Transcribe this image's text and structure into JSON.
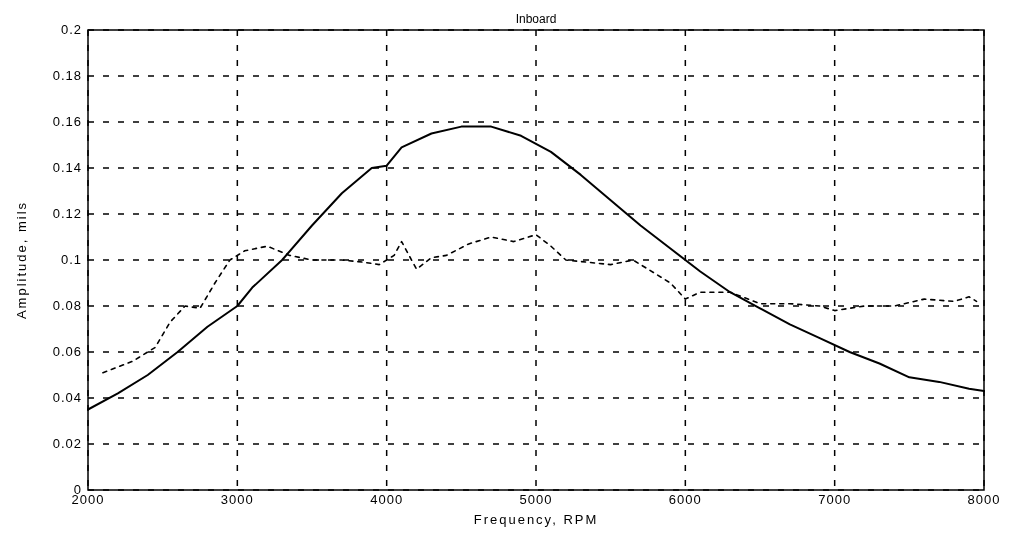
{
  "chart_data": {
    "type": "line",
    "title": "Inboard",
    "xlabel": "Frequency, RPM",
    "ylabel": "Amplitude, mils",
    "xlim": [
      2000,
      8000
    ],
    "xticks": [
      2000,
      3000,
      4000,
      5000,
      6000,
      7000,
      8000
    ],
    "ylim": [
      0,
      0.2
    ],
    "yticks": [
      0,
      0.02,
      0.04,
      0.06,
      0.08,
      0.1,
      0.12,
      0.14,
      0.16,
      0.18,
      0.2
    ],
    "grid": true,
    "series": [
      {
        "color": "#000000",
        "line_style": "solid",
        "x": [
          2000,
          2200,
          2400,
          2600,
          2800,
          3000,
          3100,
          3300,
          3500,
          3700,
          3900,
          4000,
          4100,
          4300,
          4500,
          4700,
          4900,
          5100,
          5300,
          5500,
          5700,
          5900,
          6100,
          6300,
          6500,
          6700,
          6900,
          7100,
          7300,
          7500,
          7700,
          7900,
          8000
        ],
        "values": [
          0.035,
          0.042,
          0.05,
          0.06,
          0.071,
          0.08,
          0.088,
          0.1,
          0.115,
          0.129,
          0.14,
          0.141,
          0.149,
          0.155,
          0.158,
          0.158,
          0.154,
          0.147,
          0.137,
          0.126,
          0.115,
          0.105,
          0.095,
          0.086,
          0.079,
          0.072,
          0.066,
          0.06,
          0.055,
          0.049,
          0.047,
          0.044,
          0.043
        ]
      },
      {
        "color": "#000000",
        "line_style": "dashed",
        "x": [
          2100,
          2300,
          2450,
          2550,
          2650,
          2750,
          2850,
          2950,
          3050,
          3200,
          3350,
          3500,
          3700,
          3850,
          3950,
          4050,
          4100,
          4200,
          4300,
          4400,
          4550,
          4700,
          4850,
          5000,
          5100,
          5200,
          5350,
          5500,
          5650,
          5750,
          5900,
          6000,
          6100,
          6300,
          6500,
          6700,
          6900,
          7000,
          7200,
          7400,
          7600,
          7800,
          7900,
          7950
        ],
        "values": [
          0.051,
          0.056,
          0.062,
          0.073,
          0.08,
          0.079,
          0.09,
          0.1,
          0.104,
          0.106,
          0.102,
          0.1,
          0.1,
          0.099,
          0.098,
          0.102,
          0.108,
          0.096,
          0.101,
          0.102,
          0.107,
          0.11,
          0.108,
          0.111,
          0.106,
          0.1,
          0.099,
          0.098,
          0.1,
          0.096,
          0.09,
          0.083,
          0.086,
          0.086,
          0.081,
          0.081,
          0.08,
          0.078,
          0.08,
          0.08,
          0.083,
          0.082,
          0.084,
          0.082
        ]
      }
    ]
  }
}
